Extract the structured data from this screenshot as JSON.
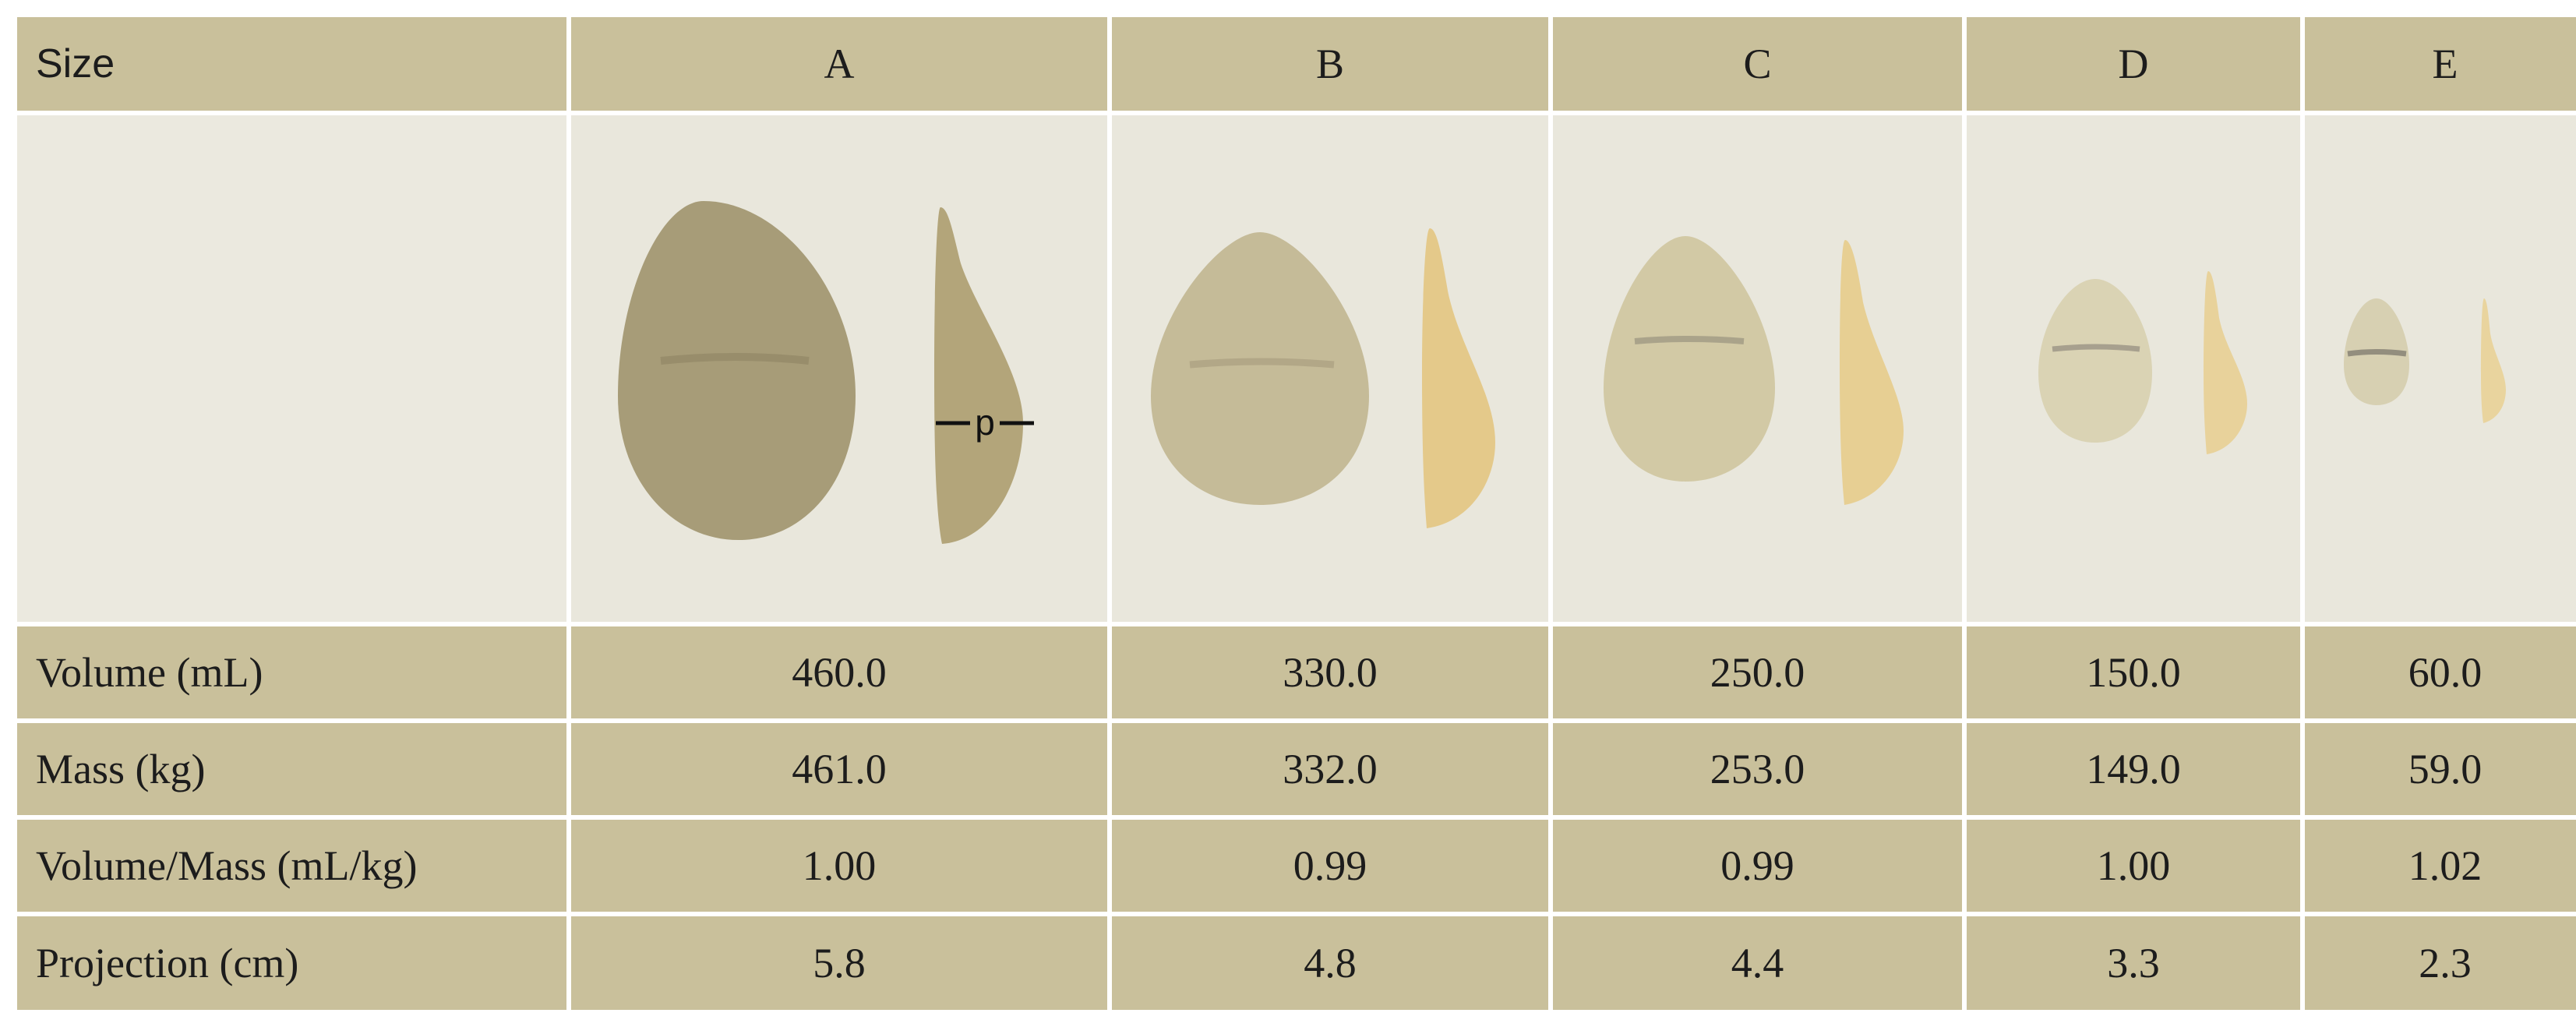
{
  "table": {
    "header": {
      "label": "Size",
      "columns": [
        "A",
        "B",
        "C",
        "D",
        "E"
      ]
    },
    "image_row": {
      "projection_marker_label": "p",
      "implants": [
        {
          "size": "A",
          "front_color": "#a79c78",
          "side_color": "#b3a57a"
        },
        {
          "size": "B",
          "front_color": "#c5bb98",
          "side_color": "#e4c98a"
        },
        {
          "size": "C",
          "front_color": "#d2c9a5",
          "side_color": "#e7cf93"
        },
        {
          "size": "D",
          "front_color": "#dad3b4",
          "side_color": "#e8d29b"
        },
        {
          "size": "E",
          "front_color": "#d7d0b2",
          "side_color": "#e9d49e"
        }
      ]
    },
    "rows": [
      {
        "label": "Volume (mL)",
        "values": [
          "460.0",
          "330.0",
          "250.0",
          "150.0",
          "60.0"
        ]
      },
      {
        "label": "Mass (kg)",
        "values": [
          "461.0",
          "332.0",
          "253.0",
          "149.0",
          "59.0"
        ]
      },
      {
        "label": "Volume/Mass (mL/kg)",
        "values": [
          "1.00",
          "0.99",
          "0.99",
          "1.00",
          "1.02"
        ]
      },
      {
        "label": "Projection (cm)",
        "values": [
          "5.8",
          "4.8",
          "4.4",
          "3.3",
          "2.3"
        ]
      }
    ]
  }
}
